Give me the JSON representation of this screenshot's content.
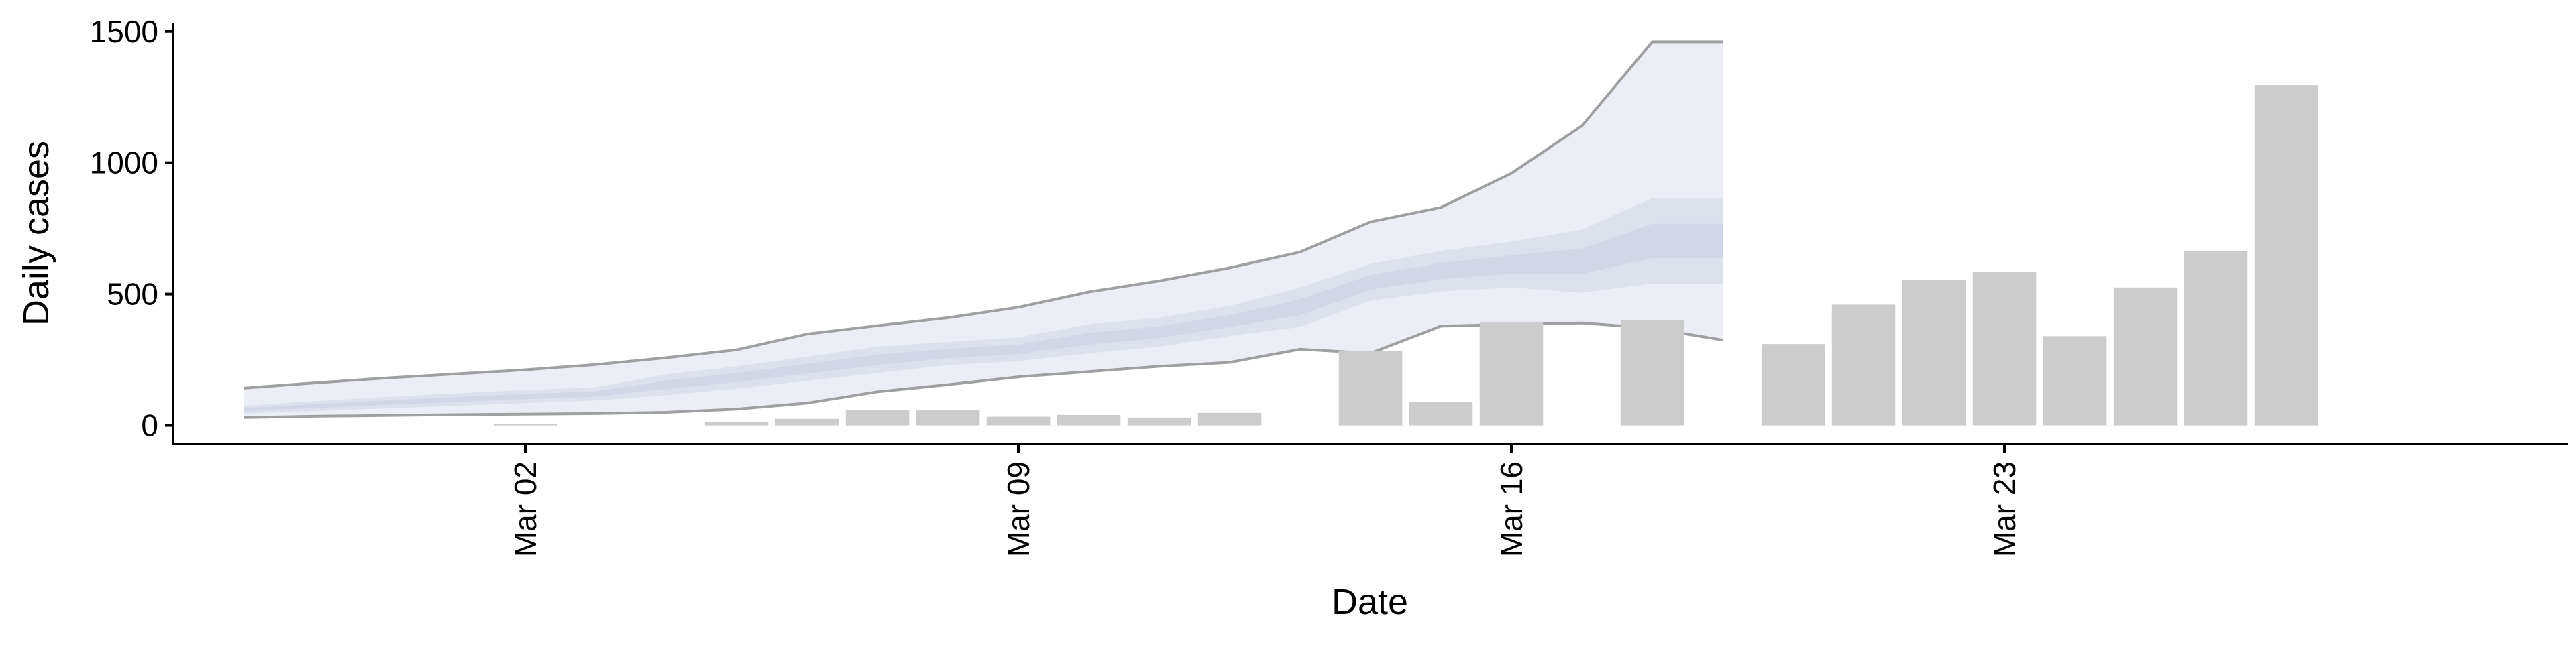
{
  "chart_data": {
    "type": "bar",
    "xlabel": "Date",
    "ylabel": "Daily cases",
    "x_ticks": [
      {
        "date": "2020-03-02",
        "label": "Mar 02"
      },
      {
        "date": "2020-03-09",
        "label": "Mar 09"
      },
      {
        "date": "2020-03-16",
        "label": "Mar 16"
      },
      {
        "date": "2020-03-23",
        "label": "Mar 23"
      }
    ],
    "y_ticks": [
      0,
      500,
      1000,
      1500
    ],
    "xlim": [
      "2020-02-26",
      "2020-03-31"
    ],
    "ylim": [
      -70,
      1530
    ],
    "grid": false,
    "bar_color": "#cccccc",
    "bars": [
      {
        "date": "2020-03-02",
        "value": 2
      },
      {
        "date": "2020-03-05",
        "value": 13
      },
      {
        "date": "2020-03-06",
        "value": 25
      },
      {
        "date": "2020-03-07",
        "value": 60
      },
      {
        "date": "2020-03-08",
        "value": 60
      },
      {
        "date": "2020-03-09",
        "value": 33
      },
      {
        "date": "2020-03-10",
        "value": 40
      },
      {
        "date": "2020-03-11",
        "value": 30
      },
      {
        "date": "2020-03-12",
        "value": 48
      },
      {
        "date": "2020-03-14",
        "value": 285
      },
      {
        "date": "2020-03-15",
        "value": 90
      },
      {
        "date": "2020-03-16",
        "value": 395
      },
      {
        "date": "2020-03-18",
        "value": 400
      },
      {
        "date": "2020-03-20",
        "value": 310
      },
      {
        "date": "2020-03-21",
        "value": 460
      },
      {
        "date": "2020-03-22",
        "value": 555
      },
      {
        "date": "2020-03-23",
        "value": 585
      },
      {
        "date": "2020-03-24",
        "value": 340
      },
      {
        "date": "2020-03-25",
        "value": 525
      },
      {
        "date": "2020-03-26",
        "value": 665
      },
      {
        "date": "2020-03-27",
        "value": 1295
      }
    ],
    "estimate": {
      "band_colors": {
        "outer": "#eceef5",
        "middle": "#dde1ec",
        "inner": "#c9cfe1",
        "bound_line": "#8a8a8a"
      },
      "dates": [
        "2020-02-27",
        "2020-02-28",
        "2020-02-29",
        "2020-03-01",
        "2020-03-02",
        "2020-03-03",
        "2020-03-04",
        "2020-03-05",
        "2020-03-06",
        "2020-03-07",
        "2020-03-08",
        "2020-03-09",
        "2020-03-10",
        "2020-03-11",
        "2020-03-12",
        "2020-03-13",
        "2020-03-14",
        "2020-03-15",
        "2020-03-16",
        "2020-03-17",
        "2020-03-18",
        "2020-03-19"
      ],
      "upper90": [
        142,
        162,
        180,
        196,
        212,
        232,
        258,
        288,
        348,
        380,
        410,
        450,
        508,
        550,
        600,
        660,
        775,
        830,
        960,
        1140,
        1460,
        1460
      ],
      "upper50": [
        75,
        92,
        108,
        122,
        135,
        145,
        195,
        225,
        262,
        300,
        318,
        335,
        385,
        410,
        455,
        525,
        615,
        665,
        700,
        745,
        865,
        865
      ],
      "lower50": [
        45,
        55,
        65,
        75,
        85,
        95,
        115,
        140,
        170,
        200,
        230,
        245,
        275,
        300,
        340,
        375,
        475,
        510,
        525,
        505,
        540,
        540
      ],
      "lower90": [
        30,
        35,
        38,
        41,
        43,
        45,
        50,
        62,
        85,
        128,
        155,
        185,
        205,
        225,
        240,
        290,
        275,
        378,
        385,
        390,
        370,
        325
      ]
    }
  }
}
